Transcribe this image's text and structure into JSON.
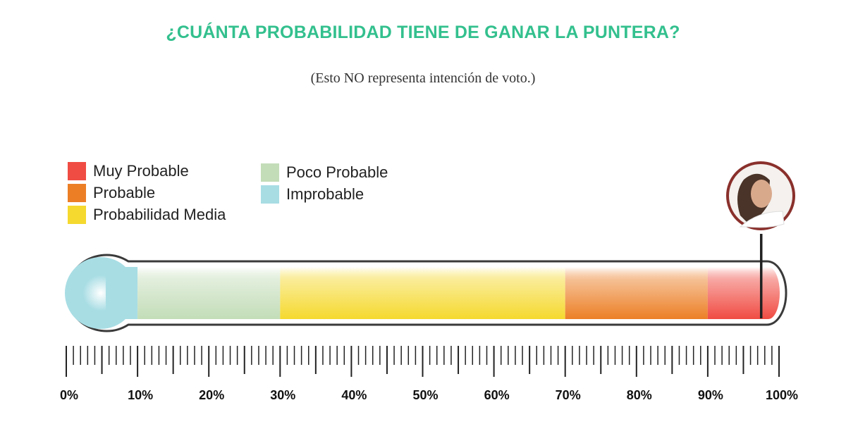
{
  "title": "¿CUÁNTA PROBABILIDAD TIENE DE GANAR LA PUNTERA?",
  "subtitle": "(Esto NO representa intención de voto.)",
  "chart_data": {
    "type": "gauge-thermometer",
    "title": "¿CUÁNTA PROBABILIDAD TIENE DE GANAR LA PUNTERA?",
    "subtitle": "(Esto NO representa intención de voto.)",
    "xlim": [
      0,
      100
    ],
    "tick_labels": [
      "0%",
      "10%",
      "20%",
      "30%",
      "40%",
      "50%",
      "60%",
      "70%",
      "80%",
      "90%",
      "100%"
    ],
    "segments": [
      {
        "name": "Improbable",
        "from": 0,
        "to": 10,
        "color": "#a8dde4"
      },
      {
        "name": "Poco Probable",
        "from": 10,
        "to": 30,
        "color": "#c3ddb8"
      },
      {
        "name": "Probabilidad Media",
        "from": 30,
        "to": 70,
        "color": "#f5d92e"
      },
      {
        "name": "Probable",
        "from": 70,
        "to": 90,
        "color": "#ec7f26"
      },
      {
        "name": "Muy Probable",
        "from": 90,
        "to": 100,
        "color": "#f04c43"
      }
    ],
    "marker_value": 97.5,
    "legend": [
      {
        "label": "Muy Probable",
        "color": "#f04c43"
      },
      {
        "label": "Probable",
        "color": "#ec7f26"
      },
      {
        "label": "Probabilidad Media",
        "color": "#f5d92e"
      },
      {
        "label": "Poco Probable",
        "color": "#c3ddb8"
      },
      {
        "label": "Improbable",
        "color": "#a8dde4"
      }
    ],
    "legend_position": "top-left"
  }
}
